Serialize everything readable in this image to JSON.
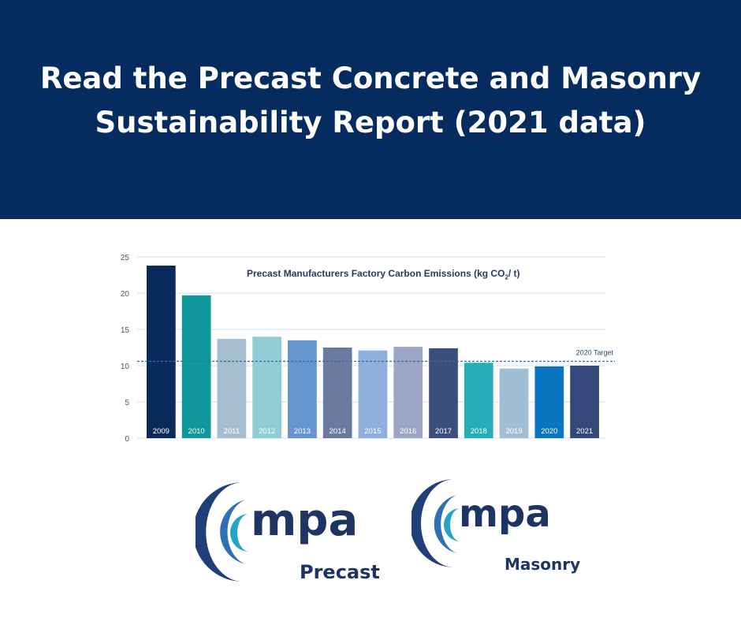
{
  "banner": {
    "line1": "Read the Precast Concrete and Masonry",
    "line2": "Sustainability Report (2021 data)"
  },
  "colors": {
    "banner_bg": "#062b5e",
    "target_line": "#2a6fb0"
  },
  "chart_data": {
    "type": "bar",
    "title": "Precast Manufacturers Factory Carbon Emissions (kg CO",
    "title_sub": "2",
    "title_end": "/ t)",
    "categories": [
      "2009",
      "2010",
      "2011",
      "2012",
      "2013",
      "2014",
      "2015",
      "2016",
      "2017",
      "2018",
      "2019",
      "2020",
      "2021"
    ],
    "values": [
      23.8,
      19.7,
      13.7,
      14.0,
      13.5,
      12.5,
      12.1,
      12.6,
      12.4,
      10.4,
      9.6,
      9.9,
      10.0
    ],
    "bar_colors": [
      "#0b2a5c",
      "#10979c",
      "#a6bfd0",
      "#92cdd6",
      "#6695cf",
      "#6b7a9f",
      "#8fafdd",
      "#9da6c6",
      "#3c4f7c",
      "#26aeb8",
      "#a1bfd4",
      "#0a76c0",
      "#34487a"
    ],
    "yticks": [
      0,
      5,
      10,
      15,
      20,
      25
    ],
    "ylim": [
      0,
      25
    ],
    "grid": true,
    "target": {
      "label": "2020 Target",
      "value": 10.6
    }
  },
  "logos": [
    {
      "word": "mpa",
      "sub": "Precast"
    },
    {
      "word": "mpa",
      "sub": "Masonry"
    }
  ]
}
